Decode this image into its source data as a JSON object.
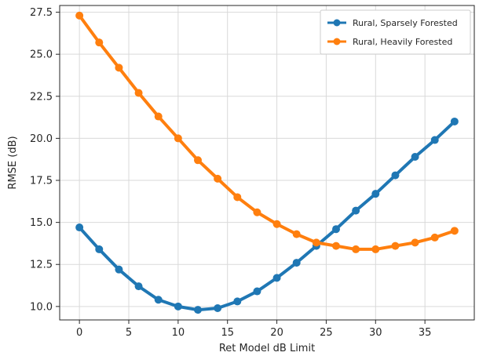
{
  "chart_data": {
    "type": "line",
    "title": "",
    "xlabel": "Ret Model dB Limit",
    "ylabel": "RMSE (dB)",
    "xlim": [
      -2,
      40
    ],
    "ylim": [
      9.2,
      27.9
    ],
    "x_ticks": [
      0,
      5,
      10,
      15,
      20,
      25,
      30,
      35
    ],
    "y_ticks": [
      10.0,
      12.5,
      15.0,
      17.5,
      20.0,
      22.5,
      25.0,
      27.5
    ],
    "x_tick_labels": [
      "0",
      "5",
      "10",
      "15",
      "20",
      "25",
      "30",
      "35"
    ],
    "y_tick_labels": [
      "10.0",
      "12.5",
      "15.0",
      "17.5",
      "20.0",
      "22.5",
      "25.0",
      "27.5"
    ],
    "grid": true,
    "legend_position": "top-right",
    "x": [
      0,
      2,
      4,
      6,
      8,
      10,
      12,
      14,
      16,
      18,
      20,
      22,
      24,
      26,
      28,
      30,
      32,
      34,
      36,
      38
    ],
    "series": [
      {
        "name": "Rural, Sparsely Forested",
        "color": "#1f77b4",
        "marker": "circle",
        "values": [
          14.7,
          13.4,
          12.2,
          11.2,
          10.4,
          10.0,
          9.8,
          9.9,
          10.3,
          10.9,
          11.7,
          12.6,
          13.6,
          14.6,
          15.7,
          16.7,
          17.8,
          18.9,
          19.9,
          21.0
        ]
      },
      {
        "name": "Rural, Heavily Forested",
        "color": "#ff7f0e",
        "marker": "circle",
        "values": [
          27.3,
          25.7,
          24.2,
          22.7,
          21.3,
          20.0,
          18.7,
          17.6,
          16.5,
          15.6,
          14.9,
          14.3,
          13.8,
          13.6,
          13.4,
          13.4,
          13.6,
          13.8,
          14.1,
          14.5
        ]
      }
    ]
  }
}
